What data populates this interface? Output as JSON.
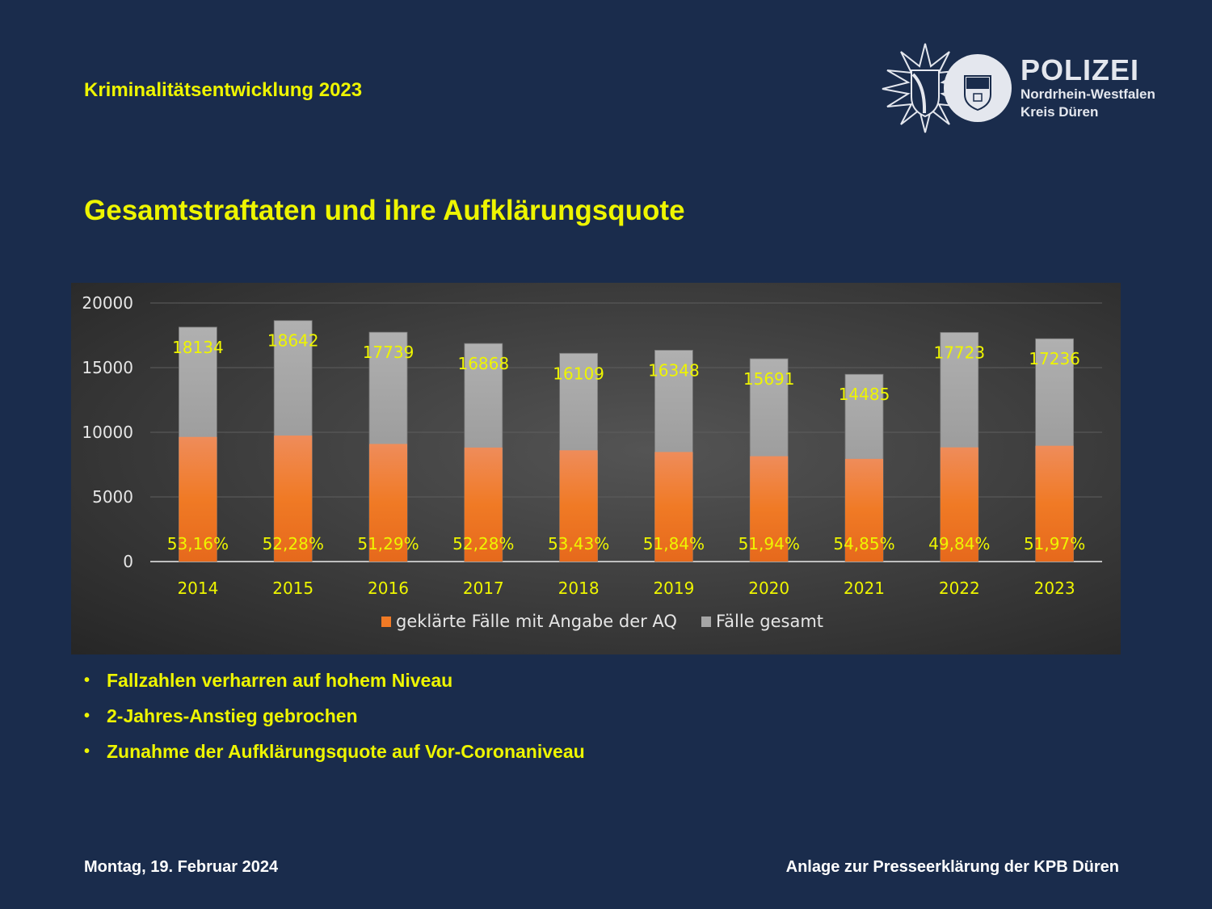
{
  "header": {
    "kicker": "Kriminalitätsentwicklung 2023",
    "title": "Gesamtstraftaten und ihre Aufklärungsquote"
  },
  "logo": {
    "line1": "POLIZEI",
    "line2": "Nordrhein-Westfalen",
    "line3": "Kreis Düren",
    "icon": "police-star-emblem"
  },
  "chart_data": {
    "type": "bar",
    "title": "",
    "xlabel": "",
    "ylabel": "",
    "ylim": [
      0,
      20000
    ],
    "yticks": [
      "0",
      "5000",
      "10000",
      "15000",
      "20000"
    ],
    "categories": [
      "2014",
      "2015",
      "2016",
      "2017",
      "2018",
      "2019",
      "2020",
      "2021",
      "2022",
      "2023"
    ],
    "series": [
      {
        "name": "geklärte Fälle mit Angabe der AQ",
        "color": "#f07e2a",
        "values": [
          9640,
          9746,
          9098,
          8819,
          8607,
          8475,
          8150,
          7945,
          8833,
          8958
        ],
        "labels": [
          "53,16%",
          "52,28%",
          "51,29%",
          "52,28%",
          "53,43%",
          "51,84%",
          "51,94%",
          "54,85%",
          "49,84%",
          "51,97%"
        ]
      },
      {
        "name": "Fälle gesamt",
        "color": "#a6a6a6",
        "values": [
          18134,
          18642,
          17739,
          16868,
          16109,
          16348,
          15691,
          14485,
          17723,
          17236
        ],
        "labels": [
          "18134",
          "18642",
          "17739",
          "16868",
          "16109",
          "16348",
          "15691",
          "14485",
          "17723",
          "17236"
        ]
      }
    ],
    "grid": true,
    "legend": "bottom",
    "mode": "overlapped"
  },
  "bullets": [
    "Fallzahlen verharren auf hohem Niveau",
    "2-Jahres-Anstieg gebrochen",
    "Zunahme der Aufklärungsquote auf Vor-Coronaniveau"
  ],
  "footer": {
    "date": "Montag, 19. Februar 2024",
    "note": "Anlage zur Presseerklärung der KPB Düren"
  }
}
